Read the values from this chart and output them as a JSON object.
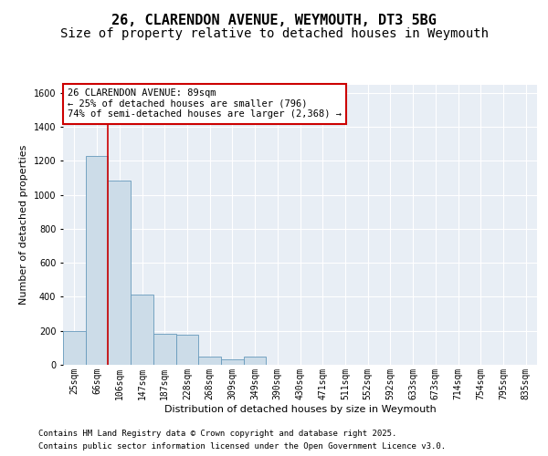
{
  "title": "26, CLARENDON AVENUE, WEYMOUTH, DT3 5BG",
  "subtitle": "Size of property relative to detached houses in Weymouth",
  "xlabel": "Distribution of detached houses by size in Weymouth",
  "ylabel": "Number of detached properties",
  "bar_color": "#ccdce8",
  "bar_edge_color": "#6699bb",
  "background_color": "#e8eef5",
  "grid_color": "#ffffff",
  "categories": [
    "25sqm",
    "66sqm",
    "106sqm",
    "147sqm",
    "187sqm",
    "228sqm",
    "268sqm",
    "309sqm",
    "349sqm",
    "390sqm",
    "430sqm",
    "471sqm",
    "511sqm",
    "552sqm",
    "592sqm",
    "633sqm",
    "673sqm",
    "714sqm",
    "754sqm",
    "795sqm",
    "835sqm"
  ],
  "values": [
    200,
    1230,
    1085,
    415,
    180,
    175,
    50,
    30,
    50,
    0,
    0,
    0,
    0,
    0,
    0,
    0,
    0,
    0,
    0,
    0,
    0
  ],
  "ylim": [
    0,
    1650
  ],
  "yticks": [
    0,
    200,
    400,
    600,
    800,
    1000,
    1200,
    1400,
    1600
  ],
  "annotation_box_text": "26 CLARENDON AVENUE: 89sqm\n← 25% of detached houses are smaller (796)\n74% of semi-detached houses are larger (2,368) →",
  "vline_x_index": 1,
  "vline_color": "#cc0000",
  "annotation_box_color": "#cc0000",
  "footer_line1": "Contains HM Land Registry data © Crown copyright and database right 2025.",
  "footer_line2": "Contains public sector information licensed under the Open Government Licence v3.0.",
  "title_fontsize": 11,
  "subtitle_fontsize": 10,
  "ylabel_fontsize": 8,
  "xlabel_fontsize": 8,
  "tick_fontsize": 7,
  "annotation_fontsize": 7.5,
  "footer_fontsize": 6.5
}
